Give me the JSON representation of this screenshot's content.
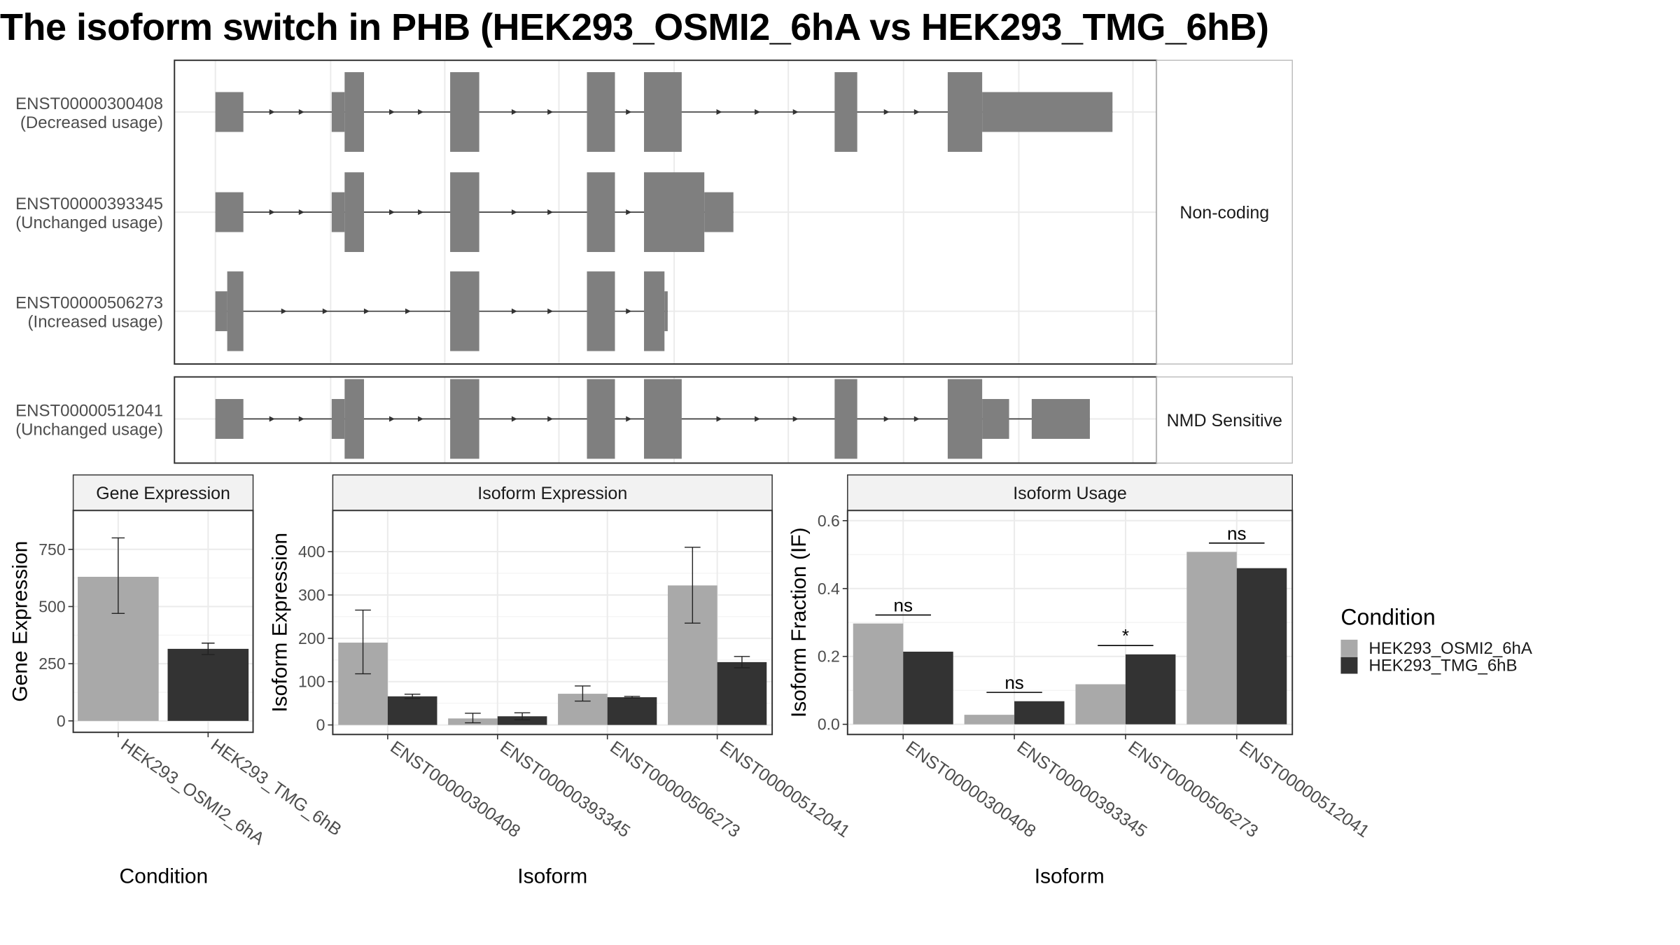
{
  "title": "The isoform switch in PHB (HEK293_OSMI2_6hA vs HEK293_TMG_6hB)",
  "colors": {
    "exon": "#7f7f7f",
    "condition_a": "#a9a9a9",
    "condition_b": "#333333",
    "strip": "#f2f2f2",
    "grid": "#ebebeb",
    "frame": "#333333"
  },
  "transcripts": {
    "facets": [
      "Non-coding",
      "NMD Sensitive"
    ],
    "rows": [
      {
        "id": "ENST00000300408",
        "usage": "(Decreased usage)",
        "facet": 0,
        "exons": [
          [
            200,
            226,
            "n"
          ],
          [
            308,
            320,
            "n"
          ],
          [
            320,
            338,
            "t"
          ],
          [
            418,
            445,
            "t"
          ],
          [
            545,
            571,
            "t"
          ],
          [
            598,
            633,
            "t"
          ],
          [
            775,
            796,
            "t"
          ],
          [
            880,
            912,
            "t"
          ],
          [
            912,
            1033,
            "n"
          ]
        ]
      },
      {
        "id": "ENST00000393345",
        "usage": "(Unchanged usage)",
        "facet": 0,
        "exons": [
          [
            200,
            226,
            "n"
          ],
          [
            308,
            320,
            "n"
          ],
          [
            320,
            338,
            "t"
          ],
          [
            418,
            445,
            "t"
          ],
          [
            545,
            571,
            "t"
          ],
          [
            598,
            654,
            "t"
          ],
          [
            654,
            681,
            "n"
          ]
        ]
      },
      {
        "id": "ENST00000506273",
        "usage": "(Increased usage)",
        "facet": 0,
        "exons": [
          [
            200,
            211,
            "n"
          ],
          [
            211,
            226,
            "t"
          ],
          [
            418,
            445,
            "t"
          ],
          [
            545,
            571,
            "t"
          ],
          [
            598,
            617,
            "t"
          ],
          [
            617,
            620,
            "n"
          ]
        ]
      },
      {
        "id": "ENST00000512041",
        "usage": "(Unchanged usage)",
        "facet": 1,
        "exons": [
          [
            200,
            226,
            "n"
          ],
          [
            308,
            320,
            "n"
          ],
          [
            320,
            338,
            "t"
          ],
          [
            418,
            445,
            "t"
          ],
          [
            545,
            571,
            "t"
          ],
          [
            598,
            633,
            "t"
          ],
          [
            775,
            796,
            "t"
          ],
          [
            880,
            912,
            "t"
          ],
          [
            912,
            937,
            "n"
          ],
          [
            958,
            1012,
            "n"
          ]
        ]
      }
    ]
  },
  "chart_data": [
    {
      "type": "bar",
      "panel": "Gene Expression",
      "xlabel": "Condition",
      "ylabel": "Gene Expression",
      "categories": [
        "HEK293_OSMI2_6hA",
        "HEK293_TMG_6hB"
      ],
      "values": [
        630,
        315
      ],
      "err_low": [
        470,
        290
      ],
      "err_high": [
        800,
        340
      ],
      "ylim": [
        -50,
        920
      ],
      "yticks": [
        0,
        250,
        500,
        750
      ]
    },
    {
      "type": "bar",
      "panel": "Isoform Expression",
      "xlabel": "Isoform",
      "ylabel": "Isoform Expression",
      "categories": [
        "ENST00000300408",
        "ENST00000393345",
        "ENST00000506273",
        "ENST00000512041"
      ],
      "series": [
        {
          "name": "HEK293_OSMI2_6hA",
          "values": [
            190,
            15,
            72,
            322
          ],
          "err_low": [
            118,
            5,
            55,
            235
          ],
          "err_high": [
            265,
            27,
            90,
            410
          ]
        },
        {
          "name": "HEK293_TMG_6hB",
          "values": [
            66,
            20,
            64,
            145
          ],
          "err_low": [
            61,
            12,
            62,
            132
          ],
          "err_high": [
            71,
            28,
            66,
            158
          ]
        }
      ],
      "ylim": [
        -22,
        495
      ],
      "yticks": [
        0,
        100,
        200,
        300,
        400
      ]
    },
    {
      "type": "bar",
      "panel": "Isoform Usage",
      "xlabel": "Isoform",
      "ylabel": "Isoform Fraction (IF)",
      "categories": [
        "ENST00000300408",
        "ENST00000393345",
        "ENST00000506273",
        "ENST00000512041"
      ],
      "series": [
        {
          "name": "HEK293_OSMI2_6hA",
          "values": [
            0.297,
            0.028,
            0.118,
            0.508
          ]
        },
        {
          "name": "HEK293_TMG_6hB",
          "values": [
            0.214,
            0.068,
            0.206,
            0.46
          ]
        }
      ],
      "significance": [
        "ns",
        "ns",
        "*",
        "ns"
      ],
      "sig_y": [
        0.322,
        0.094,
        0.232,
        0.534
      ],
      "ylim": [
        -0.03,
        0.63
      ],
      "yticks": [
        0.0,
        0.2,
        0.4,
        0.6
      ],
      "tick_labels": [
        "0.0",
        "0.2",
        "0.4",
        "0.6"
      ]
    }
  ],
  "legend": {
    "title": "Condition",
    "items": [
      "HEK293_OSMI2_6hA",
      "HEK293_TMG_6hB"
    ]
  }
}
